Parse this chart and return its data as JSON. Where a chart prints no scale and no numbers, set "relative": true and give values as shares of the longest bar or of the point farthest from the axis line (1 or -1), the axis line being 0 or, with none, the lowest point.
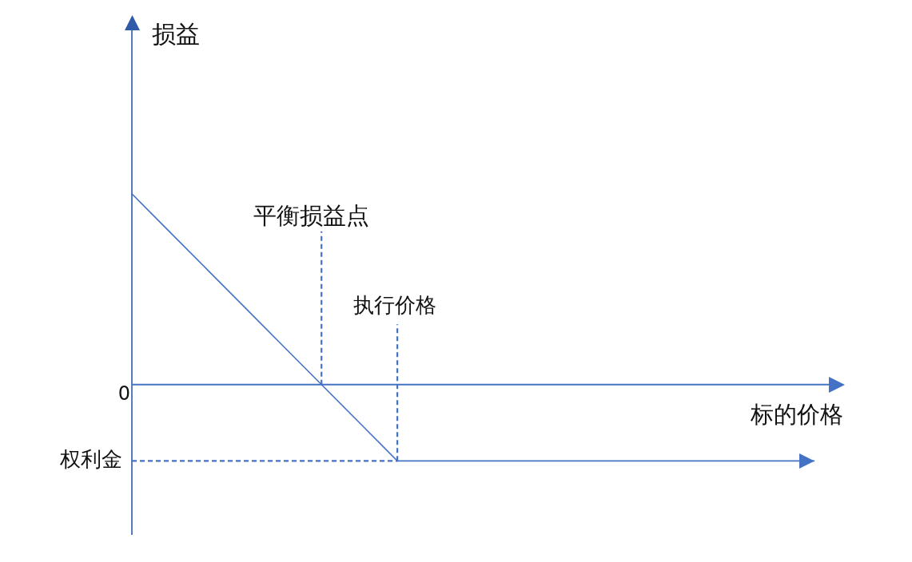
{
  "chart_data": {
    "type": "line",
    "xlabel": "标的价格",
    "relative": true,
    "categories": [
      null,
      null,
      null,
      null,
      null,
      null,
      null,
      null,
      null,
      null,
      null,
      null,
      null,
      null,
      null,
      null,
      null,
      null,
      null
    ],
    "series": [
      {
        "color": "#4472c4",
        "values": [
          1,
          0.8,
          0.6,
          0.4,
          0.2,
          0,
          -0.2,
          -0.4,
          -0.4,
          -0.4,
          -0.4,
          -0.4,
          -0.4,
          -0.4,
          -0.4,
          -0.4,
          -0.4,
          -0.4,
          -0.4
        ]
      }
    ],
    "ref_lines": [
      {
        "axis": "y",
        "value": 0,
        "label": "0",
        "color": "#4472c4"
      },
      {
        "axis": "y",
        "value": -0.4,
        "label": "权利金",
        "color": "#4472c4",
        "line_style": "dashed"
      }
    ],
    "annotations": [
      "损益",
      "平衡损益点",
      "执行价格"
    ]
  }
}
